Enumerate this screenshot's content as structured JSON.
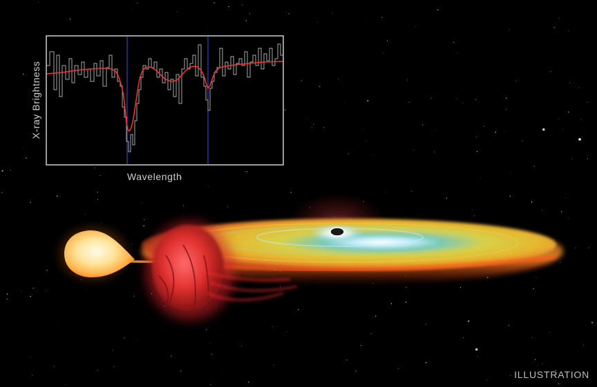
{
  "inset_chart": {
    "xlabel": "Wavelength",
    "ylabel": "X-ray Brightness"
  },
  "credit": {
    "label": "ILLUSTRATION"
  },
  "colors": {
    "background": "#000000",
    "model_line": "#ff3030",
    "data_line": "#bdbdbd",
    "marker_lines": "#3a4cff",
    "chart_frame": "#cfcfcf",
    "donor_star": "#ffd27a",
    "accretion_disk": "#e0c23a",
    "wind_cloud": "#e83a3a"
  }
}
